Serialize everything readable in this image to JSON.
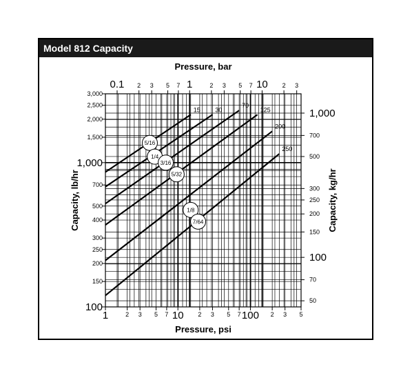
{
  "title": "Model 812 Capacity",
  "chart_data": {
    "type": "line",
    "scale": "log-log",
    "grid": true,
    "x_bottom": {
      "label": "Pressure, psi",
      "range": [
        1,
        500
      ],
      "ticks": [
        {
          "v": 1,
          "t": "1",
          "major": true
        },
        {
          "v": 2,
          "t": "2"
        },
        {
          "v": 3,
          "t": "3"
        },
        {
          "v": 5,
          "t": "5"
        },
        {
          "v": 7,
          "t": "7"
        },
        {
          "v": 10,
          "t": "10",
          "major": true
        },
        {
          "v": 20,
          "t": "2"
        },
        {
          "v": 30,
          "t": "3"
        },
        {
          "v": 50,
          "t": "5"
        },
        {
          "v": 70,
          "t": "7"
        },
        {
          "v": 100,
          "t": "100",
          "major": true
        },
        {
          "v": 200,
          "t": "2"
        },
        {
          "v": 300,
          "t": "3"
        },
        {
          "v": 500,
          "t": "5"
        }
      ]
    },
    "x_top": {
      "label": "Pressure, bar",
      "ticks": [
        {
          "v": 0.1,
          "t": "0.1",
          "major": true
        },
        {
          "v": 0.2,
          "t": "2"
        },
        {
          "v": 0.3,
          "t": "3"
        },
        {
          "v": 0.5,
          "t": "5"
        },
        {
          "v": 0.7,
          "t": "7"
        },
        {
          "v": 1,
          "t": "1",
          "major": true
        },
        {
          "v": 2,
          "t": "2"
        },
        {
          "v": 3,
          "t": "3"
        },
        {
          "v": 5,
          "t": "5"
        },
        {
          "v": 7,
          "t": "7"
        },
        {
          "v": 10,
          "t": "10",
          "major": true
        },
        {
          "v": 20,
          "t": "2"
        },
        {
          "v": 30,
          "t": "3"
        }
      ]
    },
    "y_left": {
      "label": "Capacity, lb/hr",
      "range": [
        100,
        3000
      ],
      "ticks": [
        {
          "v": 100,
          "t": "100",
          "major": true
        },
        {
          "v": 150,
          "t": "150"
        },
        {
          "v": 200,
          "t": "200"
        },
        {
          "v": 250,
          "t": "250"
        },
        {
          "v": 300,
          "t": "300"
        },
        {
          "v": 400,
          "t": "400"
        },
        {
          "v": 500,
          "t": "500"
        },
        {
          "v": 700,
          "t": "700"
        },
        {
          "v": 1000,
          "t": "1,000",
          "major": true
        },
        {
          "v": 1500,
          "t": "1,500"
        },
        {
          "v": 2000,
          "t": "2,000"
        },
        {
          "v": 2500,
          "t": "2,500"
        },
        {
          "v": 3000,
          "t": "3,000"
        }
      ]
    },
    "y_right": {
      "label": "Capacity, kg/hr",
      "ticks": [
        {
          "v": 50,
          "t": "50"
        },
        {
          "v": 70,
          "t": "70"
        },
        {
          "v": 100,
          "t": "100",
          "major": true
        },
        {
          "v": 150,
          "t": "150"
        },
        {
          "v": 200,
          "t": "200"
        },
        {
          "v": 250,
          "t": "250"
        },
        {
          "v": 300,
          "t": "300"
        },
        {
          "v": 500,
          "t": "500"
        },
        {
          "v": 700,
          "t": "700"
        },
        {
          "v": 1000,
          "t": "1,000",
          "major": true
        }
      ]
    },
    "series": [
      {
        "name": "15",
        "x": [
          1,
          15
        ],
        "y": [
          860,
          2150
        ]
      },
      {
        "name": "30",
        "x": [
          1,
          30
        ],
        "y": [
          680,
          2150
        ]
      },
      {
        "name": "70",
        "x": [
          1,
          70
        ],
        "y": [
          520,
          2300
        ]
      },
      {
        "name": "125",
        "x": [
          1,
          125
        ],
        "y": [
          370,
          2150
        ]
      },
      {
        "name": "200",
        "x": [
          1,
          200
        ],
        "y": [
          210,
          1650
        ]
      },
      {
        "name": "250",
        "x": [
          1,
          250
        ],
        "y": [
          120,
          1150
        ]
      }
    ],
    "orifice_labels": [
      {
        "t": "5/16",
        "x": 4.1,
        "y": 1370
      },
      {
        "t": "1/4",
        "x": 4.8,
        "y": 1100
      },
      {
        "t": "3/16",
        "x": 6.8,
        "y": 1000
      },
      {
        "t": "5/32",
        "x": 9.6,
        "y": 830
      },
      {
        "t": "1/8",
        "x": 15,
        "y": 470
      },
      {
        "t": "7/64",
        "x": 19,
        "y": 390
      }
    ]
  }
}
